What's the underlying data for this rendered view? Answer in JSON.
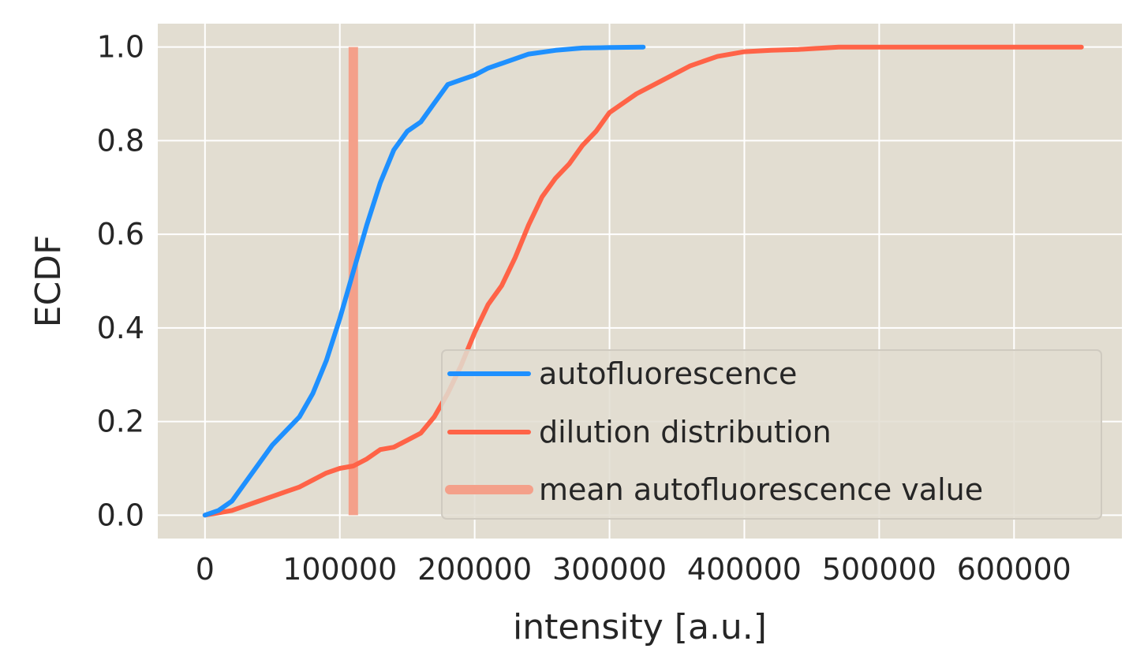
{
  "chart_data": {
    "type": "line",
    "xlabel": "intensity [a.u.]",
    "ylabel": "ECDF",
    "xlim": [
      -35000,
      680000
    ],
    "ylim": [
      -0.05,
      1.05
    ],
    "x_ticks": [
      0,
      100000,
      200000,
      300000,
      400000,
      500000,
      600000
    ],
    "x_tick_labels": [
      "0",
      "100000",
      "200000",
      "300000",
      "400000",
      "500000",
      "600000"
    ],
    "y_ticks": [
      0.0,
      0.2,
      0.4,
      0.6,
      0.8,
      1.0
    ],
    "y_tick_labels": [
      "0.0",
      "0.2",
      "0.4",
      "0.6",
      "0.8",
      "1.0"
    ],
    "grid": true,
    "background": "#E2DDD1",
    "grid_color": "#FFFFFF",
    "legend_placement": "lower-right",
    "series": [
      {
        "name": "autofluorescence",
        "color": "#1E90FF",
        "points": [
          [
            0,
            0.0
          ],
          [
            10000,
            0.01
          ],
          [
            20000,
            0.03
          ],
          [
            30000,
            0.07
          ],
          [
            40000,
            0.11
          ],
          [
            50000,
            0.15
          ],
          [
            60000,
            0.18
          ],
          [
            70000,
            0.21
          ],
          [
            80000,
            0.26
          ],
          [
            90000,
            0.33
          ],
          [
            100000,
            0.42
          ],
          [
            110000,
            0.52
          ],
          [
            120000,
            0.62
          ],
          [
            130000,
            0.71
          ],
          [
            140000,
            0.78
          ],
          [
            150000,
            0.82
          ],
          [
            160000,
            0.84
          ],
          [
            170000,
            0.88
          ],
          [
            180000,
            0.92
          ],
          [
            190000,
            0.93
          ],
          [
            200000,
            0.94
          ],
          [
            210000,
            0.955
          ],
          [
            220000,
            0.965
          ],
          [
            240000,
            0.985
          ],
          [
            260000,
            0.993
          ],
          [
            280000,
            0.998
          ],
          [
            300000,
            0.999
          ],
          [
            325000,
            1.0
          ]
        ]
      },
      {
        "name": "dilution distribution",
        "color": "#FF6347",
        "points": [
          [
            0,
            0.0
          ],
          [
            10000,
            0.005
          ],
          [
            20000,
            0.01
          ],
          [
            30000,
            0.02
          ],
          [
            40000,
            0.03
          ],
          [
            50000,
            0.04
          ],
          [
            60000,
            0.05
          ],
          [
            70000,
            0.06
          ],
          [
            80000,
            0.075
          ],
          [
            90000,
            0.09
          ],
          [
            100000,
            0.1
          ],
          [
            110000,
            0.105
          ],
          [
            120000,
            0.12
          ],
          [
            130000,
            0.14
          ],
          [
            140000,
            0.145
          ],
          [
            150000,
            0.16
          ],
          [
            160000,
            0.175
          ],
          [
            170000,
            0.21
          ],
          [
            180000,
            0.26
          ],
          [
            190000,
            0.32
          ],
          [
            200000,
            0.39
          ],
          [
            210000,
            0.45
          ],
          [
            220000,
            0.49
          ],
          [
            230000,
            0.55
          ],
          [
            240000,
            0.62
          ],
          [
            250000,
            0.68
          ],
          [
            260000,
            0.72
          ],
          [
            270000,
            0.75
          ],
          [
            280000,
            0.79
          ],
          [
            290000,
            0.82
          ],
          [
            300000,
            0.86
          ],
          [
            320000,
            0.9
          ],
          [
            340000,
            0.93
          ],
          [
            360000,
            0.96
          ],
          [
            380000,
            0.98
          ],
          [
            400000,
            0.99
          ],
          [
            420000,
            0.993
          ],
          [
            440000,
            0.995
          ],
          [
            470000,
            1.0
          ],
          [
            650000,
            1.0
          ]
        ]
      },
      {
        "name": "mean autofluorescence value",
        "color": "#F4A08A",
        "x": 110000,
        "y_range": [
          0.0,
          1.0
        ]
      }
    ]
  }
}
